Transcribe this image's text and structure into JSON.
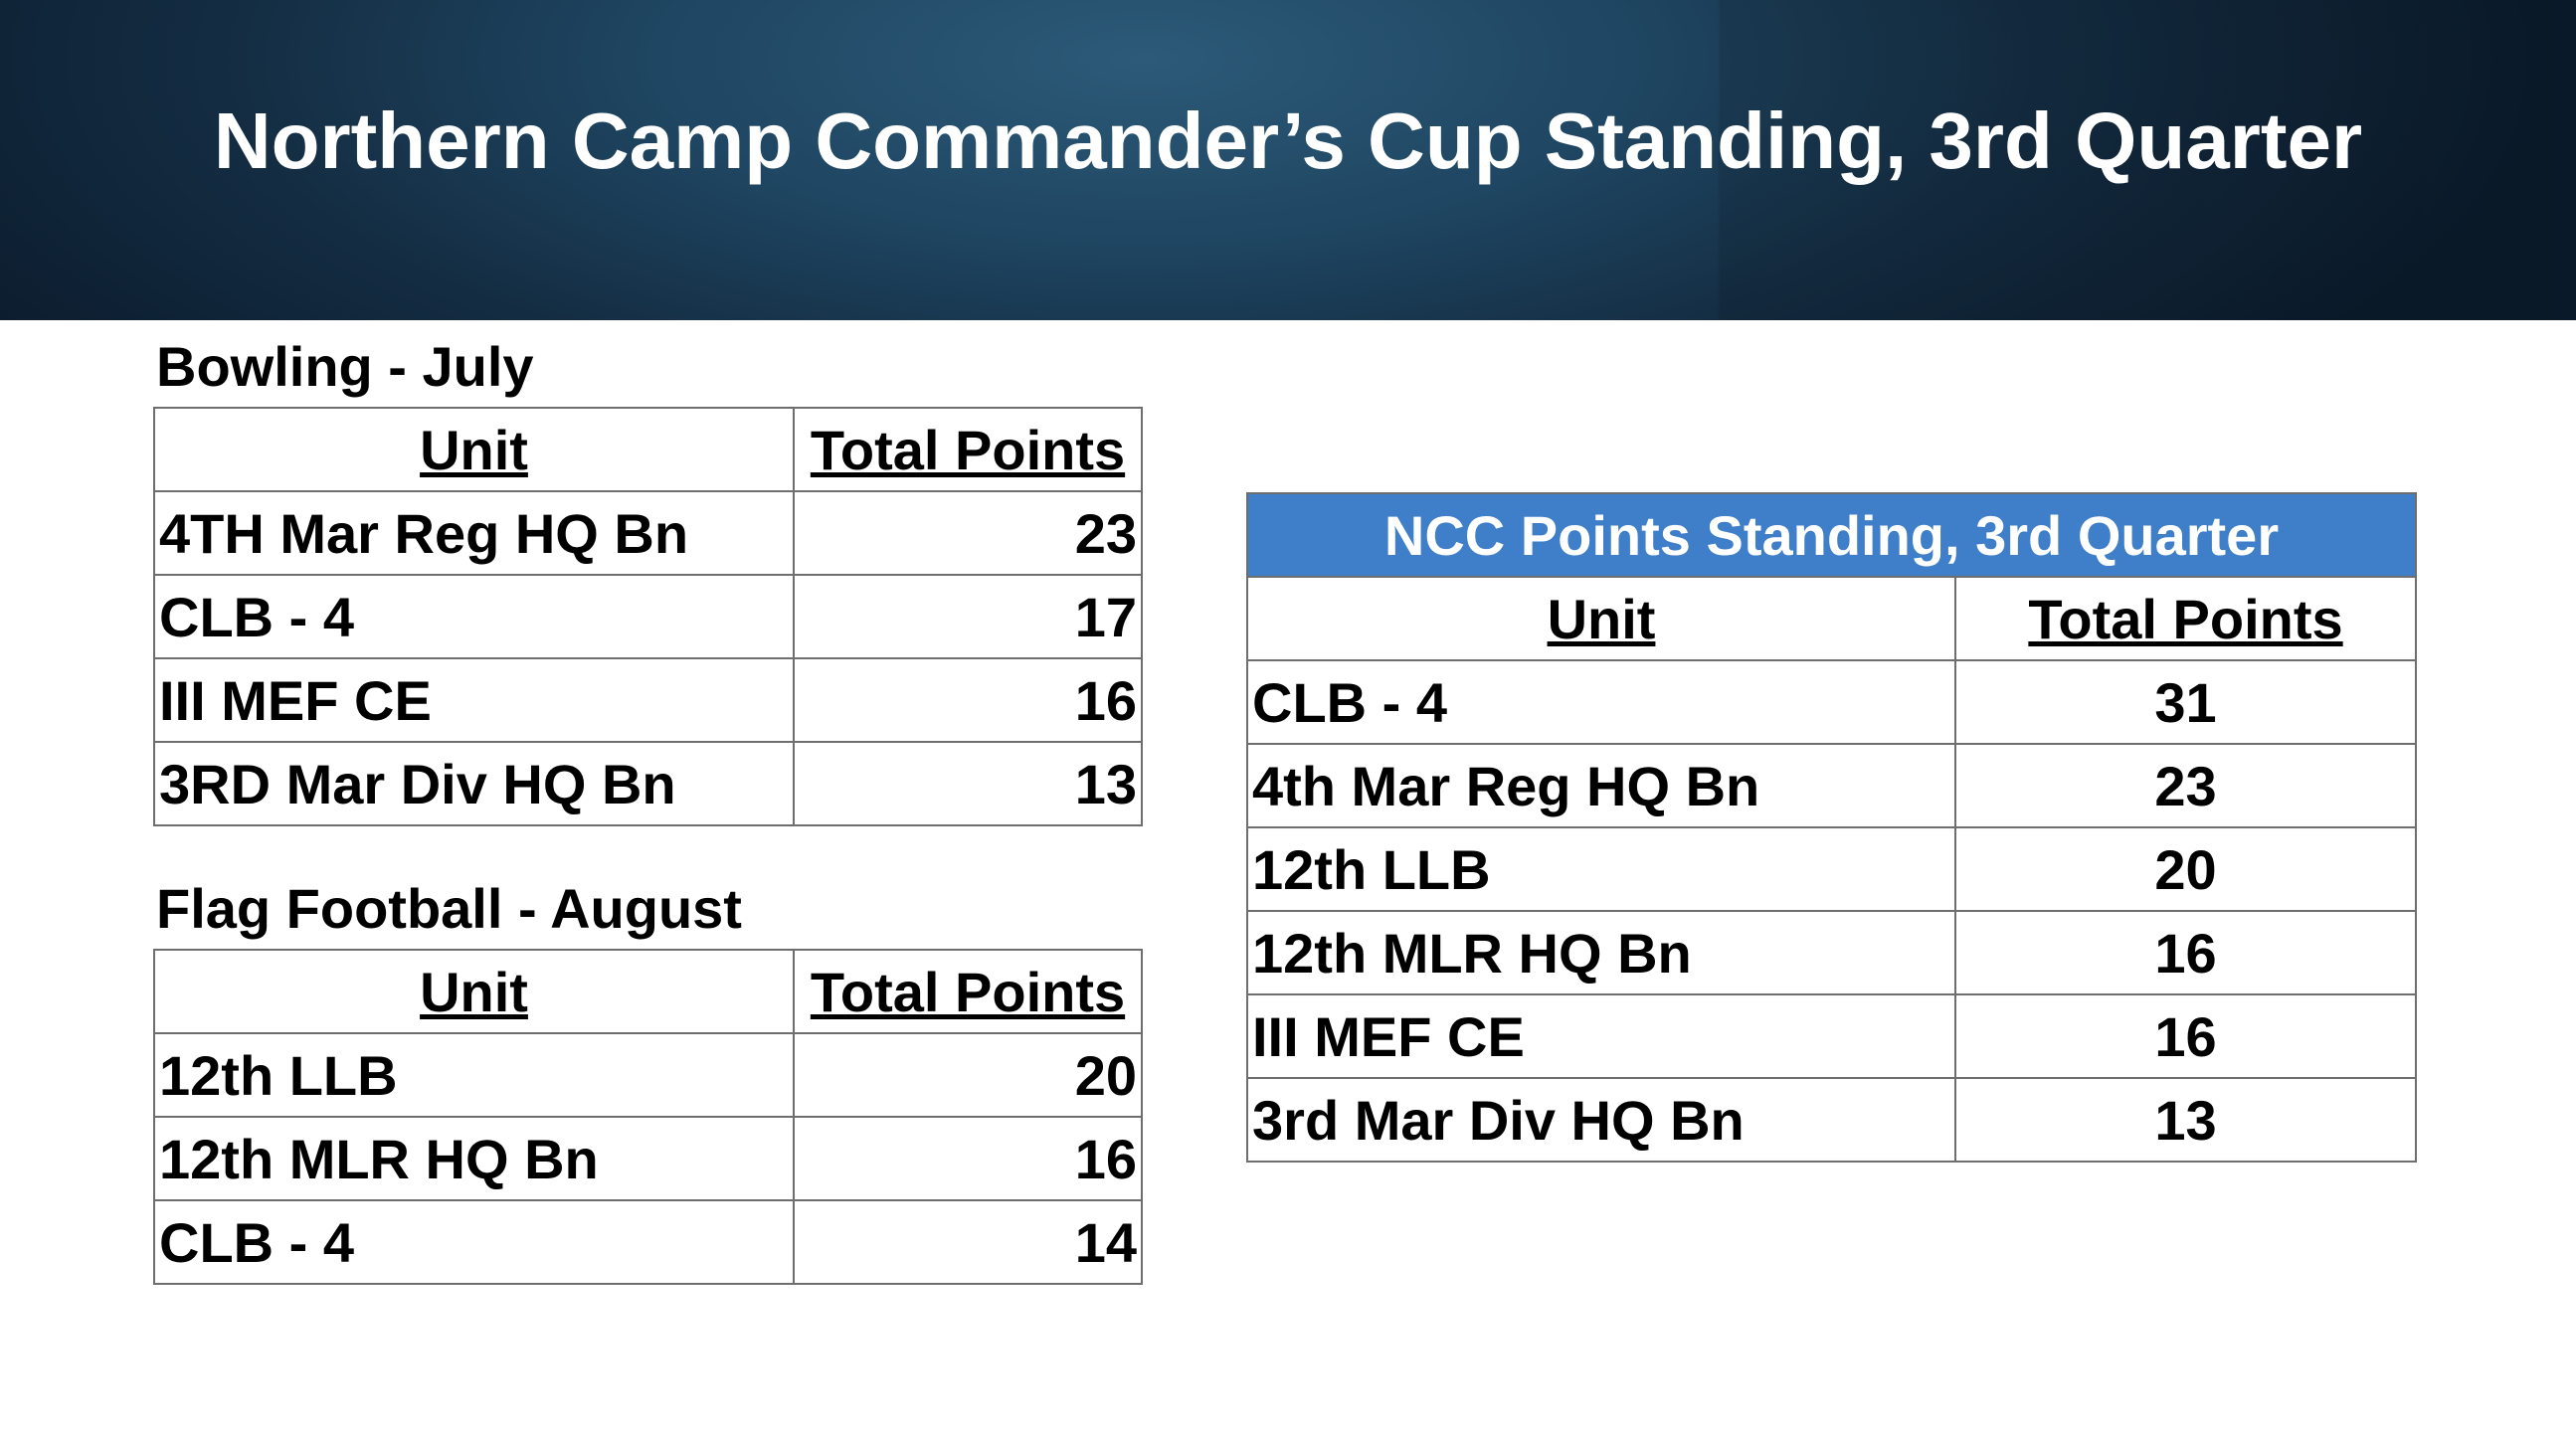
{
  "title": "Northern Camp Commander’s Cup Standing, 3rd Quarter",
  "bowling": {
    "label": "Bowling - July",
    "col_unit": "Unit",
    "col_points": "Total Points",
    "rows": [
      {
        "unit": "4TH Mar Reg HQ Bn",
        "points": "23"
      },
      {
        "unit": "CLB - 4",
        "points": "17"
      },
      {
        "unit": "III MEF CE",
        "points": "16"
      },
      {
        "unit": "3RD Mar Div HQ Bn",
        "points": "13"
      }
    ]
  },
  "flag_football": {
    "label": "Flag Football - August",
    "col_unit": "Unit",
    "col_points": "Total Points",
    "rows": [
      {
        "unit": "12th LLB",
        "points": "20"
      },
      {
        "unit": "12th MLR HQ Bn",
        "points": "16"
      },
      {
        "unit": "CLB - 4",
        "points": "14"
      }
    ]
  },
  "ncc": {
    "header": "NCC Points Standing, 3rd Quarter",
    "header_color": "#3f7ec8",
    "col_unit": "Unit",
    "col_points": "Total Points",
    "rows": [
      {
        "unit": "CLB - 4",
        "points": "31"
      },
      {
        "unit": "4th Mar Reg HQ Bn",
        "points": "23"
      },
      {
        "unit": "12th LLB",
        "points": "20"
      },
      {
        "unit": "12th MLR HQ Bn",
        "points": "16"
      },
      {
        "unit": "III MEF CE",
        "points": "16"
      },
      {
        "unit": "3rd Mar Div HQ Bn",
        "points": "13"
      }
    ]
  }
}
